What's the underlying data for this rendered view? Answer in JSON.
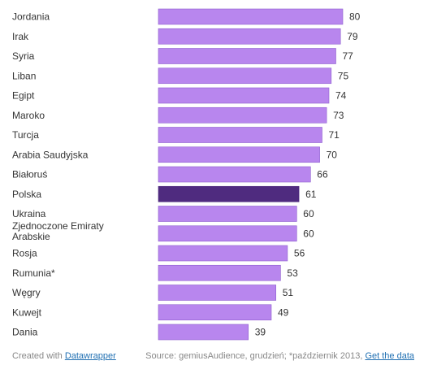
{
  "chart_data": {
    "type": "bar",
    "orientation": "horizontal",
    "categories": [
      "Jordania",
      "Irak",
      "Syria",
      "Liban",
      "Egipt",
      "Maroko",
      "Turcja",
      "Arabia Saudyjska",
      "Białoruś",
      "Polska",
      "Ukraina",
      "Zjednoczone Emiraty Arabskie",
      "Rosja",
      "Rumunia*",
      "Węgry",
      "Kuwejt",
      "Dania"
    ],
    "values": [
      80,
      79,
      77,
      75,
      74,
      73,
      71,
      70,
      66,
      61,
      60,
      60,
      56,
      53,
      51,
      49,
      39
    ],
    "highlight": "Polska",
    "colors": {
      "bar": "#b886ee",
      "highlight": "#4f2b7f",
      "bar_stroke": "#8e5fcf"
    },
    "xlim": [
      0,
      80
    ],
    "grid": false,
    "legend": "none"
  },
  "footer": {
    "created_prefix": "Created with ",
    "created_link": "Datawrapper",
    "source_text": "Source: gemiusAudience, grudzień; *październik 2013, ",
    "data_link": "Get the data"
  }
}
